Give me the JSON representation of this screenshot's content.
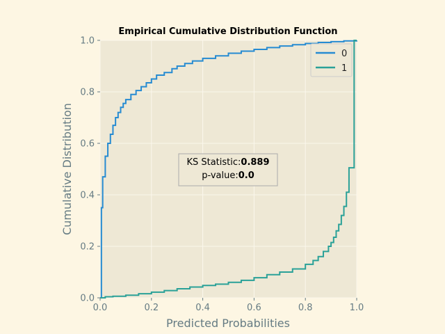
{
  "chart_data": {
    "type": "line",
    "title": "Empirical Cumulative Distribution Function",
    "xlabel": "Predicted Probabilities",
    "ylabel": "Cumulative Distribution",
    "xlim": [
      0.0,
      1.0
    ],
    "ylim": [
      0.0,
      1.0
    ],
    "x_ticks": [
      "0.0",
      "0.2",
      "0.4",
      "0.6",
      "0.8",
      "1.0"
    ],
    "y_ticks": [
      "0.0",
      "0.2",
      "0.4",
      "0.6",
      "0.8",
      "1.0"
    ],
    "grid": true,
    "legend_position": "top-right",
    "colors": {
      "background": "#fdf6e3",
      "plot_area": "#eee8d5",
      "grid": "#fbf7ec",
      "text": "#657b83"
    },
    "series": [
      {
        "name": "0",
        "color": "#268bd2",
        "x": [
          0.0,
          0.005,
          0.01,
          0.02,
          0.03,
          0.04,
          0.05,
          0.06,
          0.07,
          0.08,
          0.09,
          0.1,
          0.12,
          0.14,
          0.16,
          0.18,
          0.2,
          0.22,
          0.25,
          0.28,
          0.3,
          0.33,
          0.36,
          0.4,
          0.45,
          0.5,
          0.55,
          0.6,
          0.65,
          0.7,
          0.75,
          0.8,
          0.85,
          0.9,
          0.95,
          1.0
        ],
        "y": [
          0.0,
          0.35,
          0.47,
          0.55,
          0.6,
          0.635,
          0.67,
          0.7,
          0.72,
          0.74,
          0.755,
          0.77,
          0.79,
          0.805,
          0.82,
          0.835,
          0.85,
          0.865,
          0.875,
          0.89,
          0.9,
          0.91,
          0.92,
          0.93,
          0.94,
          0.95,
          0.958,
          0.965,
          0.972,
          0.978,
          0.983,
          0.988,
          0.992,
          0.995,
          0.998,
          1.0
        ]
      },
      {
        "name": "1",
        "color": "#2aa198",
        "x": [
          0.0,
          0.02,
          0.05,
          0.1,
          0.15,
          0.2,
          0.25,
          0.3,
          0.35,
          0.4,
          0.45,
          0.5,
          0.55,
          0.6,
          0.65,
          0.7,
          0.75,
          0.8,
          0.83,
          0.85,
          0.87,
          0.89,
          0.9,
          0.91,
          0.92,
          0.93,
          0.94,
          0.95,
          0.96,
          0.97,
          0.98,
          0.99,
          1.0
        ],
        "y": [
          0.0,
          0.004,
          0.006,
          0.01,
          0.016,
          0.022,
          0.028,
          0.035,
          0.042,
          0.048,
          0.053,
          0.06,
          0.068,
          0.078,
          0.09,
          0.1,
          0.112,
          0.13,
          0.145,
          0.16,
          0.18,
          0.2,
          0.215,
          0.235,
          0.26,
          0.285,
          0.32,
          0.355,
          0.41,
          0.505,
          0.505,
          1.0,
          1.0
        ]
      }
    ],
    "annotation": {
      "ks_label": "KS Statistic:",
      "ks_value": "0.889",
      "p_label": "p-value:",
      "p_value": "0.0"
    }
  }
}
